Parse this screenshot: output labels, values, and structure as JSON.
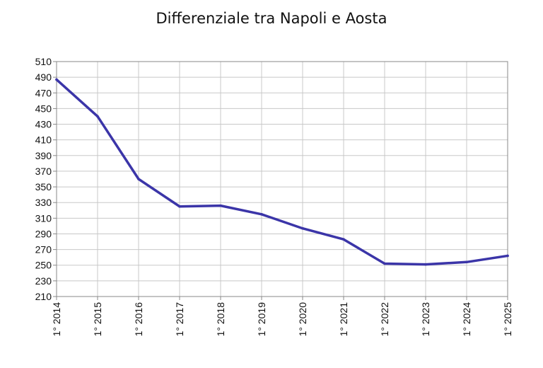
{
  "chart_data": {
    "type": "line",
    "title": "Differenziale tra Napoli e Aosta",
    "xlabel": "",
    "ylabel": "",
    "categories": [
      "1° 2014",
      "1° 2015",
      "1° 2016",
      "1° 2017",
      "1° 2018",
      "1° 2019",
      "1° 2020",
      "1° 2021",
      "1° 2022",
      "1° 2023",
      "1° 2024",
      "1° 2025"
    ],
    "series": [
      {
        "values": [
          487,
          440,
          360,
          325,
          326,
          315,
          297,
          283,
          252,
          251,
          254,
          262
        ]
      }
    ],
    "ylim": [
      210,
      510
    ],
    "yticks": [
      210,
      230,
      250,
      270,
      290,
      310,
      330,
      350,
      370,
      390,
      410,
      430,
      450,
      470,
      490,
      510
    ],
    "grid": true,
    "legend": "none",
    "colors": {
      "line": "#3b35a8",
      "grid": "#c8c8c8",
      "axis": "#888888"
    }
  }
}
